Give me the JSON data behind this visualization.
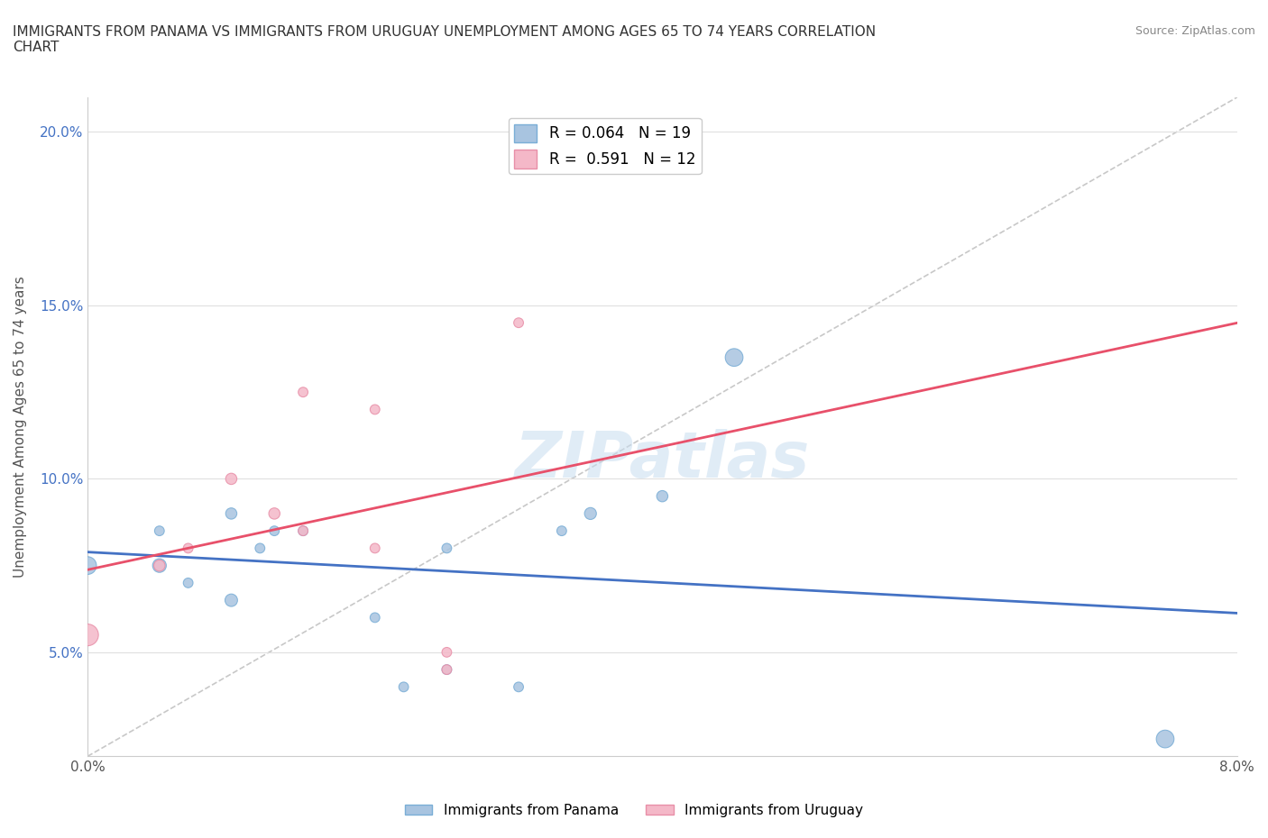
{
  "title": "IMMIGRANTS FROM PANAMA VS IMMIGRANTS FROM URUGUAY UNEMPLOYMENT AMONG AGES 65 TO 74 YEARS CORRELATION\nCHART",
  "source": "Source: ZipAtlas.com",
  "xlabel": "",
  "ylabel": "Unemployment Among Ages 65 to 74 years",
  "xlim": [
    0.0,
    0.08
  ],
  "ylim": [
    0.02,
    0.21
  ],
  "xticks": [
    0.0,
    0.01,
    0.02,
    0.03,
    0.04,
    0.05,
    0.06,
    0.07,
    0.08
  ],
  "yticks": [
    0.05,
    0.1,
    0.15,
    0.2
  ],
  "ytick_labels": [
    "5.0%",
    "10.0%",
    "15.0%",
    "20.0%"
  ],
  "xtick_labels": [
    "0.0%",
    "",
    "",
    "",
    "",
    "",
    "",
    "",
    "8.0%"
  ],
  "panama_color": "#a8c4e0",
  "uruguay_color": "#f4b8c8",
  "panama_edge_color": "#7aaed6",
  "uruguay_edge_color": "#e88fa8",
  "line_panama_color": "#4472c4",
  "line_uruguay_color": "#e8506a",
  "diag_line_color": "#c8c8c8",
  "r_panama": 0.064,
  "n_panama": 19,
  "r_uruguay": 0.591,
  "n_uruguay": 12,
  "watermark": "ZIPatlas",
  "panama_x": [
    0.0,
    0.005,
    0.005,
    0.007,
    0.01,
    0.01,
    0.012,
    0.013,
    0.015,
    0.02,
    0.022,
    0.025,
    0.025,
    0.03,
    0.033,
    0.035,
    0.04,
    0.045,
    0.075
  ],
  "panama_y": [
    0.075,
    0.075,
    0.085,
    0.07,
    0.065,
    0.09,
    0.08,
    0.085,
    0.085,
    0.06,
    0.04,
    0.08,
    0.045,
    0.04,
    0.085,
    0.09,
    0.095,
    0.135,
    0.025
  ],
  "panama_size": [
    200,
    120,
    60,
    60,
    100,
    80,
    60,
    60,
    60,
    60,
    60,
    60,
    60,
    60,
    60,
    90,
    80,
    200,
    200
  ],
  "uruguay_x": [
    0.0,
    0.005,
    0.007,
    0.01,
    0.013,
    0.015,
    0.015,
    0.02,
    0.02,
    0.025,
    0.025,
    0.03
  ],
  "uruguay_y": [
    0.055,
    0.075,
    0.08,
    0.1,
    0.09,
    0.085,
    0.125,
    0.12,
    0.08,
    0.045,
    0.05,
    0.145
  ],
  "uruguay_size": [
    300,
    80,
    60,
    80,
    80,
    60,
    60,
    60,
    60,
    60,
    60,
    60
  ],
  "background_color": "#ffffff",
  "grid_color": "#e0e0e0"
}
